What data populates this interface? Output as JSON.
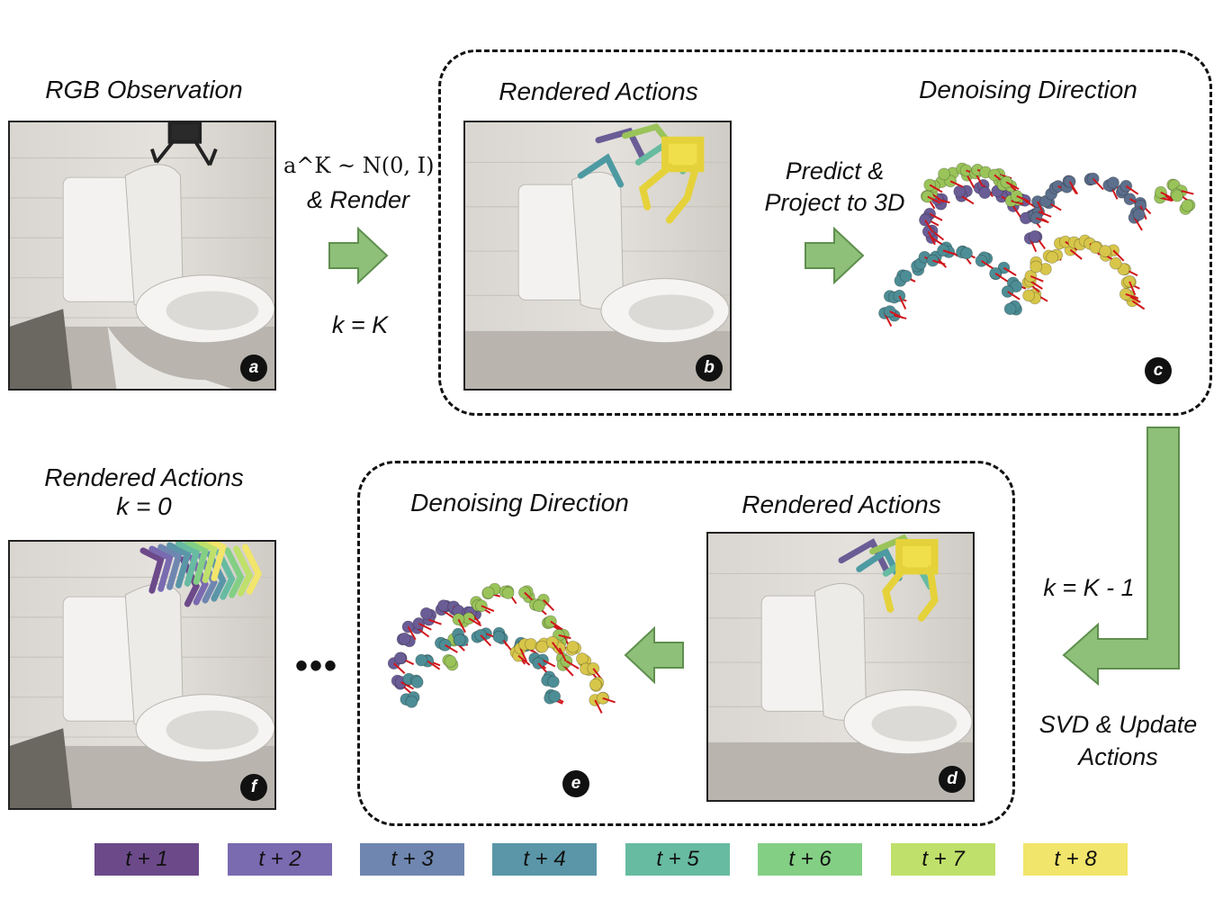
{
  "panels": {
    "a": {
      "title": "RGB Observation",
      "badge": "a"
    },
    "b": {
      "title": "Rendered Actions",
      "badge": "b"
    },
    "c": {
      "title": "Denoising Direction",
      "badge": "c"
    },
    "d": {
      "title": "Rendered Actions",
      "badge": "d"
    },
    "e": {
      "title": "Denoising Direction",
      "badge": "e"
    },
    "f": {
      "title_line1": "Rendered Actions",
      "title_line2": "k = 0",
      "badge": "f"
    }
  },
  "steps": {
    "sample_math": "a^K ~ N(0, I)",
    "render": "& Render",
    "k_equals_K": "k = K",
    "predict_line1": "Predict &",
    "predict_line2": "Project to 3D",
    "k_equals_K_minus_1": "k = K - 1",
    "svd_line1": "SVD & Update",
    "svd_line2": "Actions",
    "ellipsis": "•••"
  },
  "legend": [
    {
      "label": "t + 1",
      "color": "#6c4a8a"
    },
    {
      "label": "t + 2",
      "color": "#7a6ab0"
    },
    {
      "label": "t + 3",
      "color": "#6f86b0"
    },
    {
      "label": "t + 4",
      "color": "#5a96a8"
    },
    {
      "label": "t + 5",
      "color": "#67bba1"
    },
    {
      "label": "t + 6",
      "color": "#83cf84"
    },
    {
      "label": "t + 7",
      "color": "#bfe06a"
    },
    {
      "label": "t + 8",
      "color": "#f2e56b"
    }
  ],
  "colors": {
    "arrow_fill": "#8fc07a",
    "arrow_stroke": "#5f8f4e",
    "vector_red": "#d0161b",
    "sphere_teal": "#4d8d95",
    "sphere_yellow": "#d7c64a",
    "sphere_green": "#9ac45a",
    "sphere_purple": "#6a5d96",
    "sphere_slate": "#5c6f8c"
  }
}
